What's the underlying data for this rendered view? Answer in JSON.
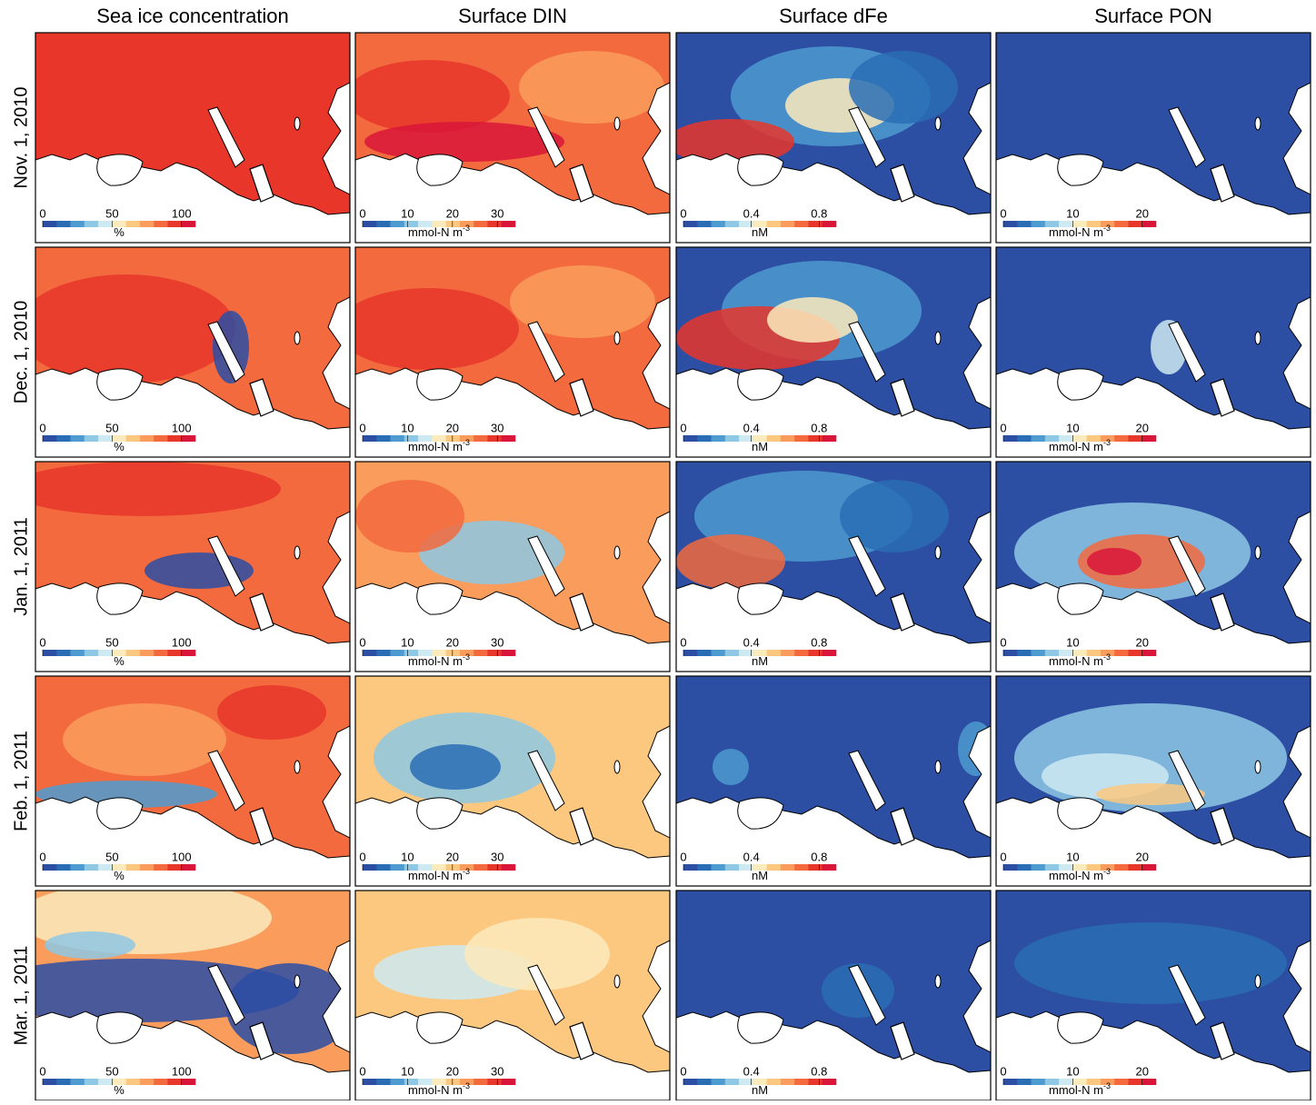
{
  "columns": [
    {
      "title": "Sea ice concentration",
      "colorbar": {
        "lim": [
          0,
          110
        ],
        "ticks": [
          0,
          50,
          100
        ],
        "unit": "%"
      }
    },
    {
      "title": "Surface DIN",
      "colorbar": {
        "lim": [
          0,
          34
        ],
        "ticks": [
          0,
          10,
          20,
          30
        ],
        "unit": "mmol-N m",
        "unit_sup": "-3"
      }
    },
    {
      "title": "Surface dFe",
      "colorbar": {
        "lim": [
          0,
          0.9
        ],
        "ticks": [
          0,
          0.4,
          0.8
        ],
        "unit": "nM"
      }
    },
    {
      "title": "Surface PON",
      "colorbar": {
        "lim": [
          0,
          22
        ],
        "ticks": [
          0,
          10,
          20
        ],
        "unit": "mmol-N m",
        "unit_sup": "-3"
      }
    }
  ],
  "rows": [
    "Nov. 1, 2010",
    "Dec. 1, 2010",
    "Jan. 1, 2011",
    "Feb. 1, 2011",
    "Mar. 1, 2011"
  ],
  "colormap": [
    "#2c4ea3",
    "#2a6db5",
    "#4e9bd0",
    "#8ec8e4",
    "#cde9f2",
    "#fbeabb",
    "#fcc880",
    "#f99c5c",
    "#f26a3e",
    "#e8362a",
    "#d9163a"
  ]
}
